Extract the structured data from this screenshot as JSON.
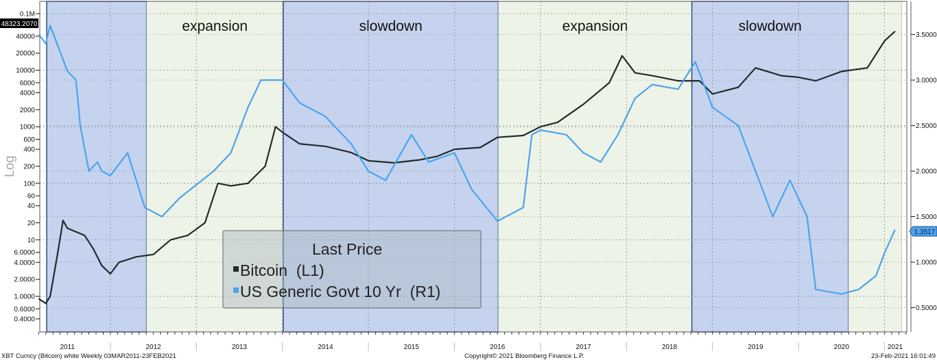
{
  "chart_data": {
    "type": "line",
    "axis_scale_label": "Log",
    "left_axis": {
      "scale": "log",
      "ticks": [
        "0.1M",
        "40000",
        "20000",
        "10000",
        "6000",
        "4000",
        "2000",
        "1000",
        "600",
        "400",
        "200",
        "100",
        "60",
        "40",
        "20",
        "10",
        "6.0000",
        "4.0000",
        "2.0000",
        "1.0000",
        "0.6000",
        "0.4000"
      ],
      "tick_values": [
        100000,
        40000,
        20000,
        10000,
        6000,
        4000,
        2000,
        1000,
        600,
        400,
        200,
        100,
        60,
        40,
        20,
        10,
        6,
        4,
        2,
        1,
        0.6,
        0.4
      ]
    },
    "right_axis": {
      "ticks": [
        "3.5000",
        "3.0000",
        "2.5000",
        "2.0000",
        "1.5000",
        "1.0000",
        "0.5000"
      ],
      "tick_values": [
        3.5,
        3.0,
        2.5,
        2.0,
        1.5,
        1.0,
        0.5
      ]
    },
    "x_ticks": [
      "2011",
      "2012",
      "2013",
      "2014",
      "2015",
      "2016",
      "2017",
      "2018",
      "2019",
      "2020",
      "2021"
    ],
    "xlim": [
      2011.17,
      2021.2
    ],
    "phases": [
      {
        "label": "",
        "start": 2011.26,
        "end": 2012.42,
        "color": "#c5d3ee"
      },
      {
        "label": "expansion",
        "start": 2012.42,
        "end": 2014.01,
        "color": "#edf3e6"
      },
      {
        "label": "slowdown",
        "start": 2014.01,
        "end": 2016.51,
        "color": "#c5d3ee"
      },
      {
        "label": "expansion",
        "start": 2016.51,
        "end": 2018.76,
        "color": "#edf3e6"
      },
      {
        "label": "slowdown",
        "start": 2018.76,
        "end": 2020.58,
        "color": "#c5d3ee"
      },
      {
        "label": "",
        "start": 2020.58,
        "end": 2021.2,
        "color": "#edf3e6"
      }
    ],
    "series": [
      {
        "name": "Bitcoin  (L1)",
        "axis": "left",
        "color": "#222b2b",
        "last_label": "48323.2070",
        "x": [
          2011.17,
          2011.25,
          2011.3,
          2011.38,
          2011.45,
          2011.5,
          2011.7,
          2011.8,
          2011.9,
          2012.0,
          2012.1,
          2012.3,
          2012.5,
          2012.7,
          2012.9,
          2013.1,
          2013.25,
          2013.4,
          2013.6,
          2013.8,
          2013.92,
          2014.0,
          2014.2,
          2014.5,
          2014.8,
          2015.0,
          2015.3,
          2015.6,
          2015.8,
          2016.0,
          2016.3,
          2016.5,
          2016.8,
          2017.0,
          2017.2,
          2017.5,
          2017.8,
          2017.95,
          2018.1,
          2018.3,
          2018.6,
          2018.85,
          2019.0,
          2019.3,
          2019.5,
          2019.8,
          2020.0,
          2020.2,
          2020.5,
          2020.8,
          2021.0,
          2021.12
        ],
        "y": [
          0.9,
          0.75,
          1.0,
          5,
          22,
          16,
          12,
          7,
          3.5,
          2.5,
          4,
          5,
          5.5,
          10,
          12,
          20,
          100,
          90,
          100,
          200,
          1000,
          800,
          500,
          450,
          350,
          250,
          230,
          260,
          300,
          400,
          430,
          650,
          700,
          1000,
          1200,
          2500,
          6000,
          18000,
          9000,
          8000,
          6500,
          6500,
          3800,
          5000,
          11000,
          8000,
          7500,
          6500,
          9500,
          11000,
          33000,
          48323
        ]
      },
      {
        "name": "US Generic Govt 10 Yr  (R1)",
        "axis": "right",
        "color": "#4da3ee",
        "last_label": "1.3517",
        "x": [
          2011.17,
          2011.25,
          2011.3,
          2011.5,
          2011.6,
          2011.65,
          2011.75,
          2011.85,
          2011.9,
          2012.0,
          2012.2,
          2012.4,
          2012.6,
          2012.8,
          2013.0,
          2013.2,
          2013.4,
          2013.6,
          2013.75,
          2014.0,
          2014.2,
          2014.5,
          2014.8,
          2015.0,
          2015.2,
          2015.5,
          2015.7,
          2016.0,
          2016.2,
          2016.5,
          2016.8,
          2016.9,
          2017.0,
          2017.3,
          2017.5,
          2017.7,
          2017.9,
          2018.1,
          2018.3,
          2018.6,
          2018.8,
          2019.0,
          2019.3,
          2019.5,
          2019.7,
          2019.9,
          2020.1,
          2020.2,
          2020.5,
          2020.7,
          2020.9,
          2021.0,
          2021.12
        ],
        "y": [
          3.5,
          3.4,
          3.6,
          3.1,
          3.0,
          2.5,
          2.0,
          2.1,
          2.0,
          1.95,
          2.2,
          1.6,
          1.5,
          1.7,
          1.85,
          2.0,
          2.2,
          2.7,
          3.0,
          3.0,
          2.75,
          2.6,
          2.3,
          2.0,
          1.9,
          2.4,
          2.1,
          2.2,
          1.8,
          1.45,
          1.6,
          2.4,
          2.45,
          2.4,
          2.2,
          2.1,
          2.4,
          2.8,
          2.95,
          2.9,
          3.2,
          2.7,
          2.5,
          2.0,
          1.5,
          1.9,
          1.5,
          0.7,
          0.65,
          0.7,
          0.85,
          1.1,
          1.3517
        ]
      }
    ],
    "legend": {
      "title": "Last Price",
      "placement": "bottom-center"
    }
  },
  "footer": {
    "left": "XBT Curncy (Bitcoin) white  Weekly 03MAR2011-23FEB2021",
    "center": "Copyright© 2021 Bloomberg Finance L.P.",
    "right": "23-Feb-2021 16:01:49"
  }
}
